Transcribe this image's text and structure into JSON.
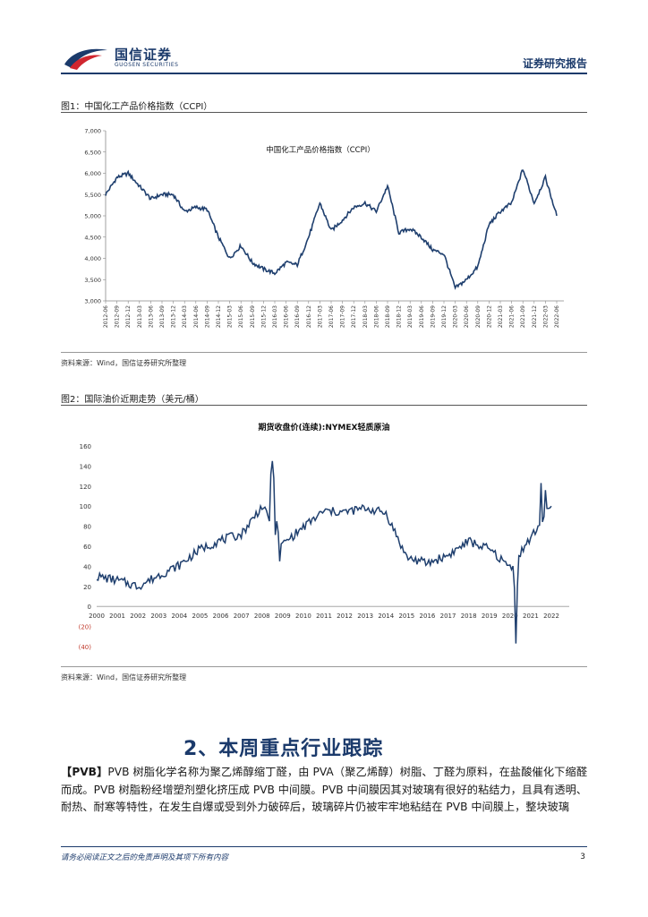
{
  "header": {
    "logo_cn": "国信证券",
    "logo_en": "GUOSEN SECURITIES",
    "report_type": "证券研究报告"
  },
  "figure1": {
    "caption": "图1：中国化工产品价格指数（CCPI）",
    "source": "资料来源：Wind，国信证券研究所整理"
  },
  "figure2": {
    "caption": "图2：国际油价近期走势（美元/桶）",
    "source": "资料来源：Wind，国信证券研究所整理"
  },
  "section": {
    "title": "2、本周重点行业跟踪",
    "tag": "【PVB】",
    "body": "PVB 树脂化学名称为聚乙烯醇缩丁醛，由 PVA（聚乙烯醇）树脂、丁醛为原料，在盐酸催化下缩醛而成。PVB 树脂粉经增塑剂塑化挤压成 PVB 中间膜。PVB 中间膜因其对玻璃有很好的粘结力，且具有透明、耐热、耐寒等特性，在发生自爆或受到外力破碎后，玻璃碎片仍被牢牢地粘结在 PVB 中间膜上，整块玻璃"
  },
  "footer": {
    "disclaimer": "请务必阅读正文之后的免责声明及其项下所有内容",
    "page": "3"
  },
  "colors": {
    "brand": "#1b3a6b",
    "series": "#1f3f6e",
    "logo_red": "#d0262f"
  },
  "chart_data": [
    {
      "type": "line",
      "title": "中国化工产品价格指数（CCPI）",
      "ylim": [
        3000,
        7000
      ],
      "yticks": [
        "7,000",
        "6,500",
        "6,000",
        "5,500",
        "5,000",
        "4,500",
        "4,000",
        "3,500",
        "3,000"
      ],
      "categories": [
        "2012-06",
        "2012-09",
        "2012-12",
        "2013-03",
        "2013-06",
        "2013-09",
        "2013-12",
        "2014-03",
        "2014-06",
        "2014-09",
        "2014-12",
        "2015-03",
        "2015-06",
        "2015-09",
        "2015-12",
        "2016-03",
        "2016-06",
        "2016-09",
        "2016-12",
        "2017-03",
        "2017-06",
        "2017-09",
        "2017-12",
        "2018-03",
        "2018-06",
        "2018-09",
        "2018-12",
        "2019-03",
        "2019-06",
        "2019-09",
        "2019-12",
        "2020-03",
        "2020-06",
        "2020-09",
        "2020-12",
        "2021-03",
        "2021-06",
        "2021-09",
        "2021-12",
        "2022-03",
        "2022-06"
      ],
      "series": [
        {
          "name": "CCPI",
          "values": [
            5500,
            5900,
            6000,
            5700,
            5400,
            5500,
            5500,
            5100,
            5200,
            5150,
            4500,
            4000,
            4300,
            3900,
            3750,
            3650,
            3900,
            3850,
            4500,
            5300,
            4650,
            4900,
            5200,
            5300,
            5100,
            5700,
            4600,
            4700,
            4500,
            4200,
            4100,
            3300,
            3500,
            3800,
            4800,
            5100,
            5300,
            6100,
            5300,
            5900,
            5000
          ]
        }
      ]
    },
    {
      "type": "line",
      "title": "期货收盘价(连续):NYMEX轻质原油",
      "ylim": [
        -40,
        160
      ],
      "yticks": [
        "160",
        "140",
        "120",
        "100",
        "80",
        "60",
        "40",
        "20",
        "0",
        "(20)",
        "(40)"
      ],
      "categories": [
        "2000",
        "2001",
        "2002",
        "2003",
        "2004",
        "2005",
        "2006",
        "2007",
        "2008",
        "2009",
        "2010",
        "2011",
        "2012",
        "2013",
        "2014",
        "2015",
        "2016",
        "2017",
        "2018",
        "2019",
        "2020",
        "2021",
        "2022"
      ],
      "series": [
        {
          "name": "NYMEX WTI",
          "values": [
            30,
            26,
            20,
            31,
            41,
            57,
            66,
            72,
            100,
            62,
            79,
            95,
            94,
            98,
            93,
            49,
            43,
            51,
            65,
            57,
            39,
            68,
            100
          ]
        }
      ]
    }
  ]
}
